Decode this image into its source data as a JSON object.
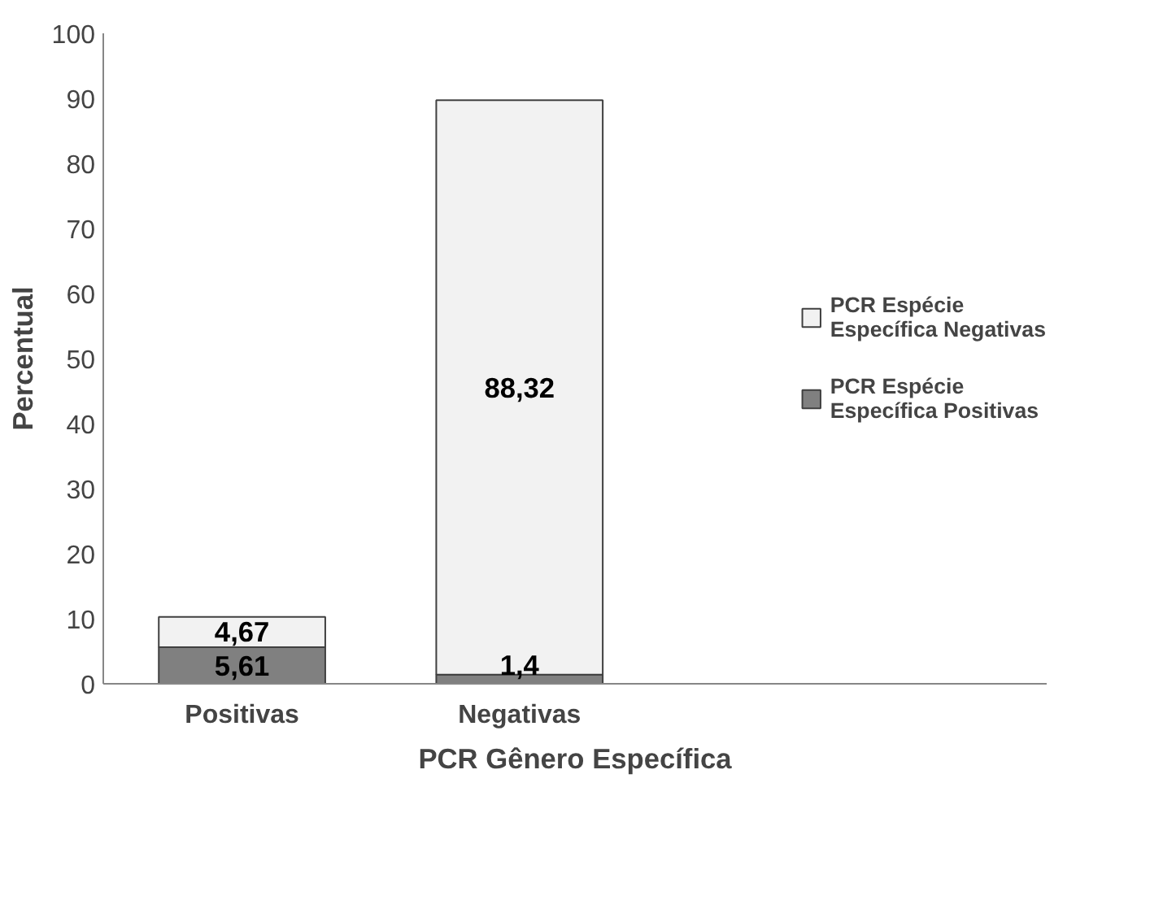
{
  "chart_data": {
    "type": "bar",
    "stacked": true,
    "xlabel": "PCR Gênero Específica",
    "ylabel": "Percentual",
    "categories": [
      "Positivas",
      "Negativas"
    ],
    "series": [
      {
        "name": "PCR Espécie Específica Positivas",
        "color": "#808080",
        "values": [
          5.61,
          1.4
        ],
        "value_labels": [
          "5,61",
          "1,4"
        ]
      },
      {
        "name": "PCR Espécie Específica Negativas",
        "color": "#f2f2f2",
        "values": [
          4.67,
          88.32
        ],
        "value_labels": [
          "4,67",
          "88,32"
        ]
      }
    ],
    "ylim": [
      0,
      100
    ],
    "yticks": [
      0,
      10,
      20,
      30,
      40,
      50,
      60,
      70,
      80,
      90,
      100
    ],
    "grid": false,
    "legend": "right"
  }
}
